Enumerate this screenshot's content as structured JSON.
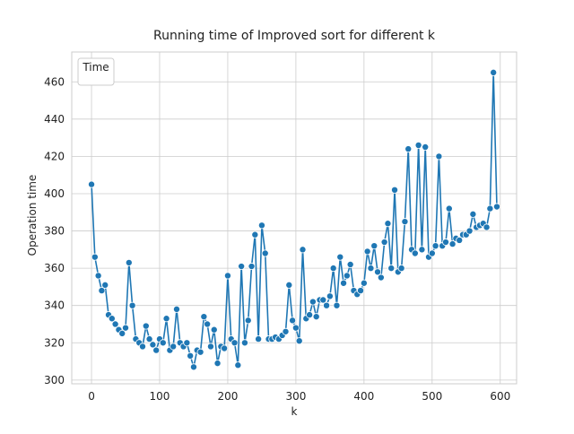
{
  "chart_data": {
    "type": "line",
    "title": "Running time of Improved sort for different k",
    "x_label": "k",
    "y_label": "Operation time",
    "legend_title": "Time",
    "legend_loc": "upper left",
    "grid": true,
    "xlim": [
      -29,
      624
    ],
    "ylim": [
      298,
      476
    ],
    "xticks": [
      0,
      100,
      200,
      300,
      400,
      500,
      600
    ],
    "yticks": [
      300,
      320,
      340,
      360,
      380,
      400,
      420,
      440,
      460
    ],
    "x": [
      0,
      5,
      10,
      15,
      20,
      25,
      30,
      35,
      40,
      45,
      50,
      55,
      60,
      65,
      70,
      75,
      80,
      85,
      90,
      95,
      100,
      105,
      110,
      115,
      120,
      125,
      130,
      135,
      140,
      145,
      150,
      155,
      160,
      165,
      170,
      175,
      180,
      185,
      190,
      195,
      200,
      205,
      210,
      215,
      220,
      225,
      230,
      235,
      240,
      245,
      250,
      255,
      260,
      265,
      270,
      275,
      280,
      285,
      290,
      295,
      300,
      305,
      310,
      315,
      320,
      325,
      330,
      335,
      340,
      345,
      350,
      355,
      360,
      365,
      370,
      375,
      380,
      385,
      390,
      395,
      400,
      405,
      410,
      415,
      420,
      425,
      430,
      435,
      440,
      445,
      450,
      455,
      460,
      465,
      470,
      475,
      480,
      485,
      490,
      495,
      500,
      505,
      510,
      515,
      520,
      525,
      530,
      535,
      540,
      545,
      550,
      555,
      560,
      565,
      570,
      575,
      580,
      585,
      590,
      595
    ],
    "series": [
      {
        "name": "Time",
        "color": "#1f77b4",
        "values": [
          405,
          366,
          356,
          348,
          351,
          335,
          333,
          330,
          327,
          325,
          328,
          363,
          340,
          322,
          320,
          318,
          329,
          322,
          319,
          316,
          322,
          320,
          333,
          316,
          318,
          338,
          320,
          318,
          320,
          313,
          307,
          316,
          315,
          334,
          330,
          318,
          327,
          309,
          318,
          317,
          356,
          322,
          320,
          308,
          361,
          320,
          332,
          361,
          378,
          322,
          383,
          368,
          322,
          322,
          323,
          322,
          324,
          326,
          351,
          332,
          328,
          321,
          370,
          333,
          335,
          342,
          334,
          343,
          343,
          340,
          345,
          360,
          340,
          366,
          352,
          356,
          362,
          348,
          346,
          348,
          352,
          369,
          360,
          372,
          358,
          355,
          374,
          384,
          360,
          402,
          358,
          360,
          385,
          424,
          370,
          368,
          426,
          370,
          425,
          366,
          368,
          372,
          420,
          372,
          374,
          392,
          373,
          376,
          375,
          378,
          378,
          380,
          389,
          382,
          383,
          384,
          382,
          392,
          465,
          393
        ]
      }
    ]
  }
}
